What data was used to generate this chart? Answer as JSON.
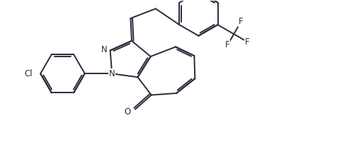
{
  "bg_color": "#ffffff",
  "bond_color": "#2a2a3a",
  "label_color": "#2a2a3a",
  "lw": 1.4,
  "fs": 8.5,
  "fig_width": 4.83,
  "fig_height": 2.11,
  "dpi": 100,
  "xlim": [
    0.0,
    9.5
  ],
  "ylim": [
    0.0,
    4.15
  ]
}
